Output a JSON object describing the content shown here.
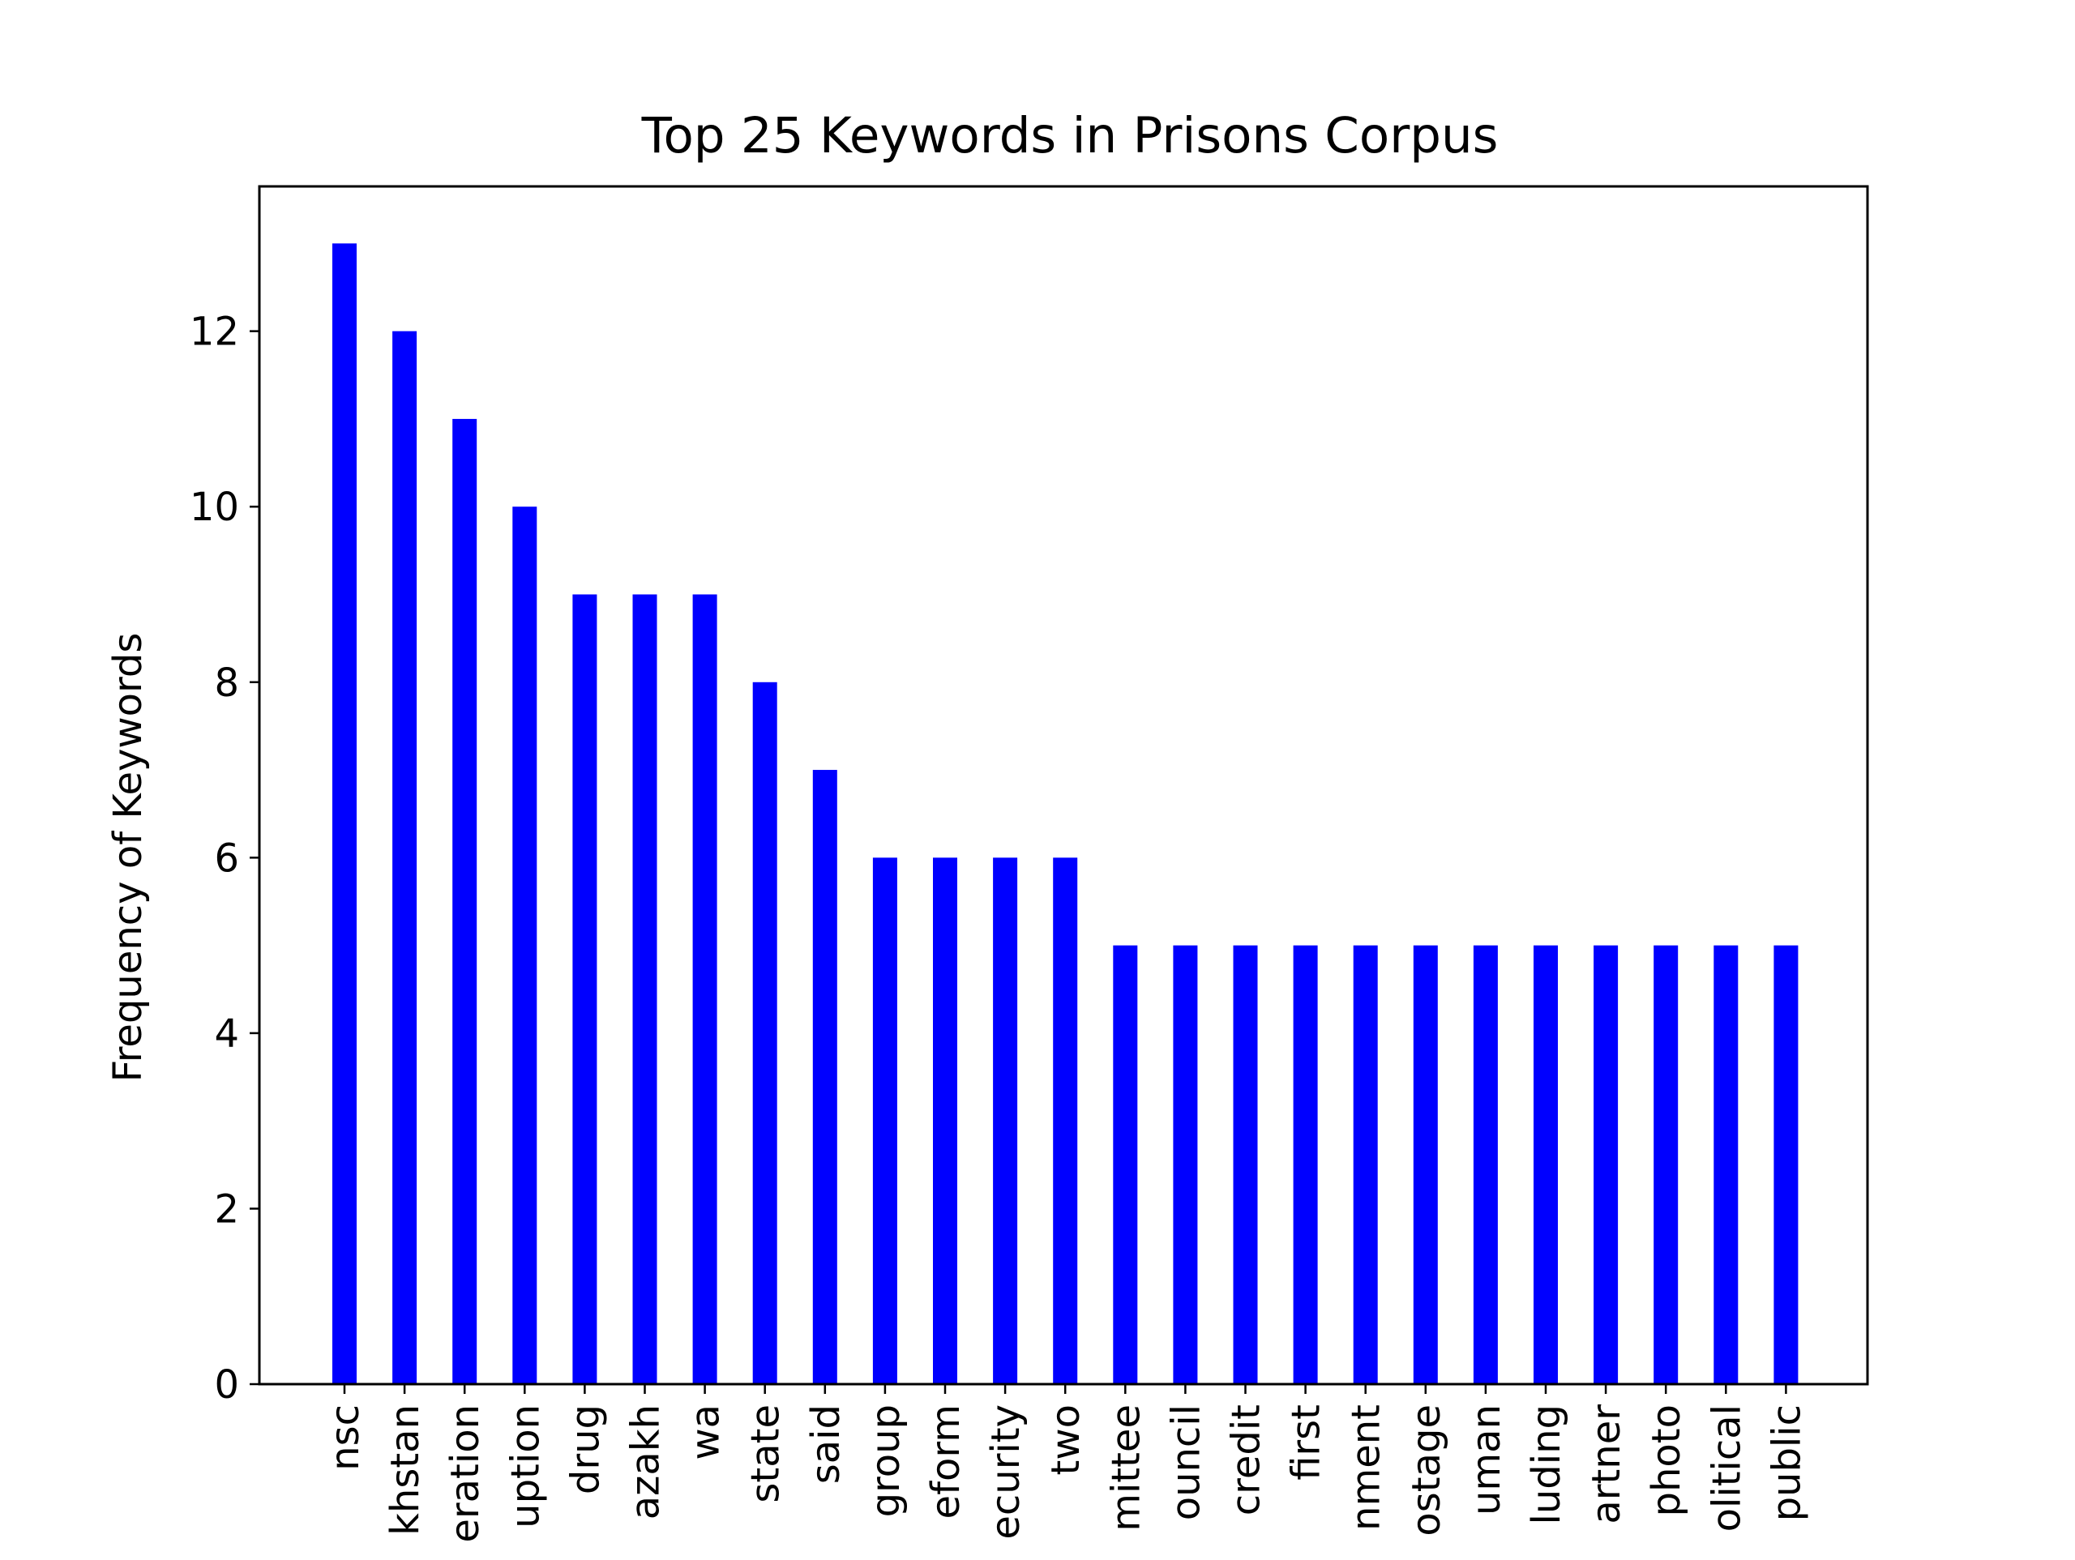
{
  "chart_data": {
    "type": "bar",
    "title": "Top 25 Keywords in Prisons Corpus",
    "xlabel": "",
    "ylabel": "Frequency of Keywords",
    "categories": [
      "nsc",
      "khstan",
      "eration",
      "uption",
      "drug",
      "azakh",
      "wa",
      "state",
      "said",
      "group",
      "eform",
      "ecurity",
      "two",
      "mittee",
      "ouncil",
      "credit",
      "first",
      "nment",
      "ostage",
      "uman",
      "luding",
      "artner",
      "photo",
      "olitical",
      "public"
    ],
    "values": [
      13,
      12,
      11,
      10,
      9,
      9,
      9,
      8,
      7,
      6,
      6,
      6,
      6,
      5,
      5,
      5,
      5,
      5,
      5,
      5,
      5,
      5,
      5,
      5,
      5
    ],
    "ylim": [
      0,
      13.65
    ],
    "yticks": [
      0,
      2,
      4,
      6,
      8,
      10,
      12
    ],
    "bar_color": "#0000ff",
    "grid": false,
    "legend": "none"
  }
}
